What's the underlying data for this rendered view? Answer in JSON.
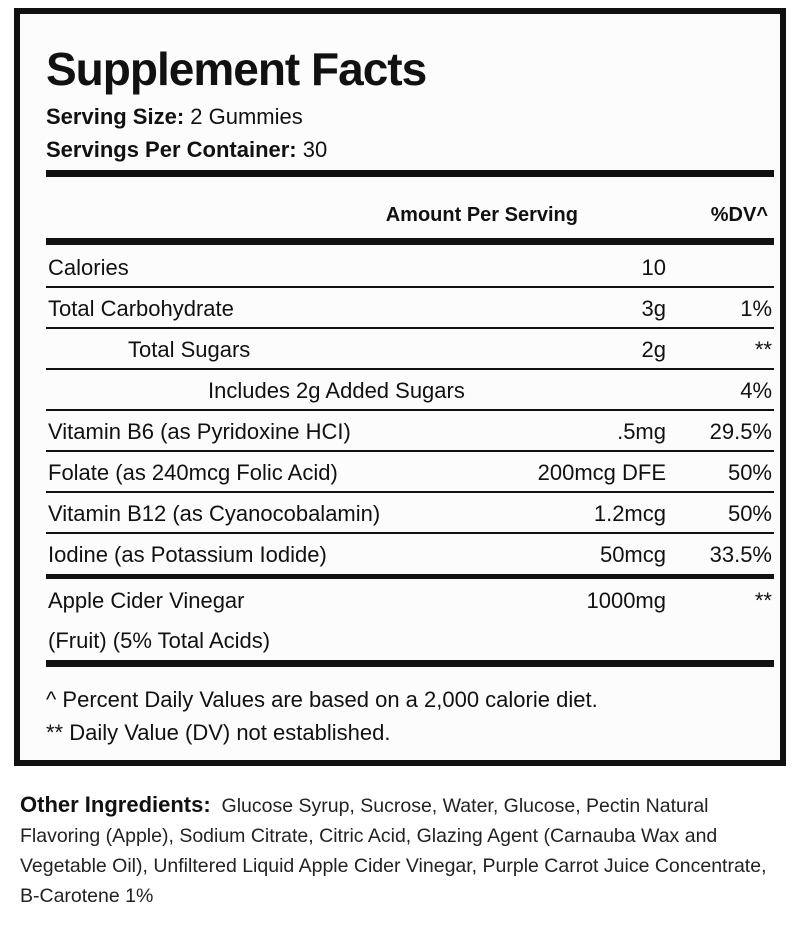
{
  "title": "Supplement Facts",
  "serving_size": {
    "label": "Serving Size:",
    "value": "2 Gummies"
  },
  "servings_per_container": {
    "label": "Servings Per Container:",
    "value": "30"
  },
  "header": {
    "amount": "Amount Per Serving",
    "dv": "%DV^"
  },
  "rows": [
    {
      "name": "Calories",
      "amount": "10",
      "dv": ""
    },
    {
      "name": "Total Carbohydrate",
      "amount": "3g",
      "dv": "1%"
    },
    {
      "name": "Total Sugars",
      "amount": "2g",
      "dv": "**"
    },
    {
      "name": "Includes 2g Added Sugars",
      "amount": "",
      "dv": "4%"
    },
    {
      "name": "Vitamin B6 (as Pyridoxine HCI)",
      "amount": ".5mg",
      "dv": "29.5%"
    },
    {
      "name": "Folate (as 240mcg Folic Acid)",
      "amount": "200mcg DFE",
      "dv": "50%"
    },
    {
      "name": "Vitamin B12 (as Cyanocobalamin)",
      "amount": "1.2mcg",
      "dv": "50%"
    },
    {
      "name": "Iodine (as Potassium Iodide)",
      "amount": "50mcg",
      "dv": "33.5%"
    },
    {
      "name": "Apple Cider Vinegar",
      "name2": "(Fruit) (5% Total Acids)",
      "amount": "1000mg",
      "dv": "**"
    }
  ],
  "footnotes": [
    "^ Percent Daily Values are based on a 2,000 calorie diet.",
    "** Daily Value (DV) not established."
  ],
  "other_ingredients": {
    "label": "Other Ingredients:",
    "text": "Glucose Syrup, Sucrose, Water, Glucose, Pectin Natural Flavoring (Apple), Sodium Citrate, Citric Acid, Glazing Agent (Carnauba Wax and Vegetable Oil), Unfiltered Liquid Apple Cider Vinegar, Purple Carrot Juice Concentrate, B-Carotene 1%"
  }
}
